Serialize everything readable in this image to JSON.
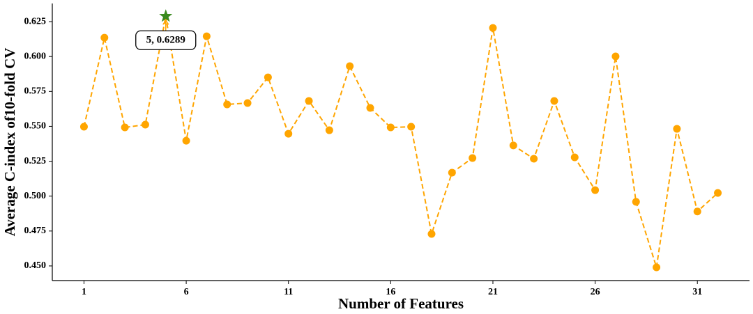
{
  "chart_data": {
    "type": "line",
    "x_label": "Number of Features",
    "y_label": "Average C-index of10-fold CV",
    "x": [
      1,
      2,
      3,
      4,
      5,
      6,
      7,
      8,
      9,
      10,
      11,
      12,
      13,
      14,
      15,
      16,
      17,
      18,
      19,
      20,
      21,
      22,
      23,
      24,
      25,
      26,
      27,
      28,
      29,
      30,
      31,
      32
    ],
    "series": [
      {
        "color": "#ffa500",
        "values": [
          0.5497,
          0.6135,
          0.5492,
          0.5512,
          0.6289,
          0.5397,
          0.6145,
          0.5657,
          0.5667,
          0.5851,
          0.5447,
          0.5682,
          0.5472,
          0.5931,
          0.5632,
          0.5492,
          0.5497,
          0.4729,
          0.5168,
          0.5273,
          0.6205,
          0.5363,
          0.5268,
          0.5682,
          0.5278,
          0.5043,
          0.6001,
          0.4959,
          0.449,
          0.5482,
          0.489,
          0.5023
        ]
      }
    ],
    "best": {
      "x": 5,
      "value": 0.6289,
      "label": "5, 0.6289",
      "color": "#3a8a1e"
    },
    "xlim": [
      -0.55,
      33.55
    ],
    "ylim": [
      0.4395,
      0.638
    ],
    "xticks": [
      1,
      6,
      11,
      16,
      21,
      26,
      31
    ],
    "yticks": [
      {
        "value": 0.45,
        "label": "0.450"
      },
      0.475,
      {
        "value": 0.5,
        "label": "0.500"
      },
      0.525,
      {
        "value": 0.55,
        "label": "0.550"
      },
      0.575,
      {
        "value": 0.6,
        "label": "0.600"
      },
      0.625
    ]
  }
}
